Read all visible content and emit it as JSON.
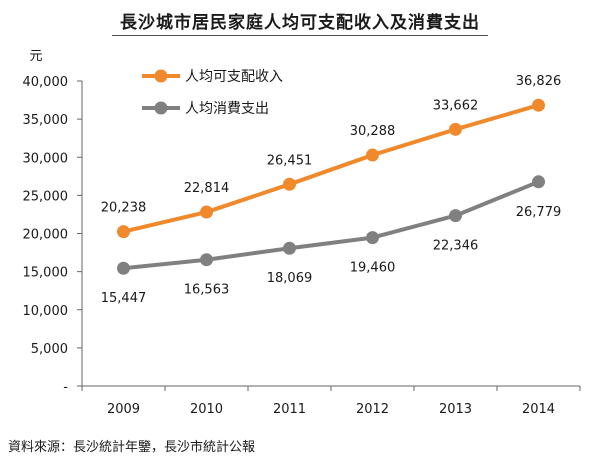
{
  "title": "長沙城市居民家庭人均可支配收入及消費支出",
  "source": "資料來源：長沙統計年鑒，長沙市統計公報",
  "chart_data": {
    "type": "line",
    "ylabel": "元",
    "x": [
      "2009",
      "2010",
      "2011",
      "2012",
      "2013",
      "2014"
    ],
    "ylim": [
      0,
      40000
    ],
    "yticks": [
      0,
      5000,
      10000,
      15000,
      20000,
      25000,
      30000,
      35000,
      40000
    ],
    "ytick_labels": [
      "-",
      "5,000",
      "10,000",
      "15,000",
      "20,000",
      "25,000",
      "30,000",
      "35,000",
      "40,000"
    ],
    "grid": false,
    "legend_position": "top-left",
    "series": [
      {
        "name": "人均可支配收入",
        "color": "#f0892c",
        "values": [
          20238,
          22814,
          26451,
          30288,
          33662,
          36826
        ],
        "labels": [
          "20,238",
          "22,814",
          "26,451",
          "30,288",
          "33,662",
          "36,826"
        ],
        "label_position": "above"
      },
      {
        "name": "人均消費支出",
        "color": "#808080",
        "values": [
          15447,
          16563,
          18069,
          19460,
          22346,
          26779
        ],
        "labels": [
          "15,447",
          "16,563",
          "18,069",
          "19,460",
          "22,346",
          "26,779"
        ],
        "label_position": "below"
      }
    ]
  }
}
